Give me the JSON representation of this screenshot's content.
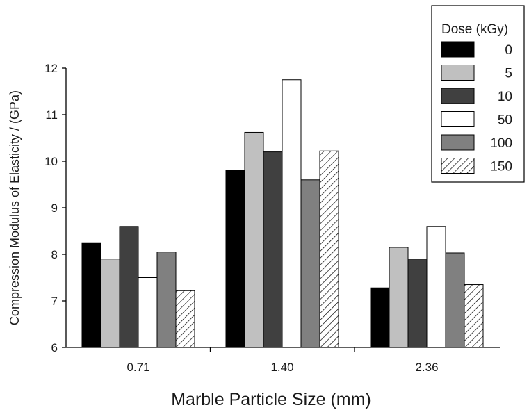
{
  "chart_data": {
    "type": "bar",
    "title": "",
    "xlabel": "Marble Particle Size (mm)",
    "ylabel": "Compression Modulus of Elasticity / (GPa)",
    "ylim": [
      6,
      12
    ],
    "yticks": [
      6,
      7,
      8,
      9,
      10,
      11,
      12
    ],
    "categories": [
      "0.71",
      "1.40",
      "2.36"
    ],
    "legend": {
      "title": "Dose (kGy)",
      "placement": "top-right"
    },
    "series": [
      {
        "name": "0",
        "values": [
          8.25,
          9.8,
          7.28
        ],
        "color": "#000000",
        "pattern": "solid"
      },
      {
        "name": "5",
        "values": [
          7.9,
          10.62,
          8.15
        ],
        "color": "#c0c0c0",
        "pattern": "solid"
      },
      {
        "name": "10",
        "values": [
          8.6,
          10.2,
          7.9
        ],
        "color": "#404040",
        "pattern": "solid"
      },
      {
        "name": "50",
        "values": [
          7.5,
          11.75,
          8.6
        ],
        "color": "#ffffff",
        "pattern": "solid"
      },
      {
        "name": "100",
        "values": [
          8.05,
          9.6,
          8.03
        ],
        "color": "#808080",
        "pattern": "solid"
      },
      {
        "name": "150",
        "values": [
          7.22,
          10.22,
          7.35
        ],
        "color": "#ffffff",
        "pattern": "hatch"
      }
    ]
  }
}
